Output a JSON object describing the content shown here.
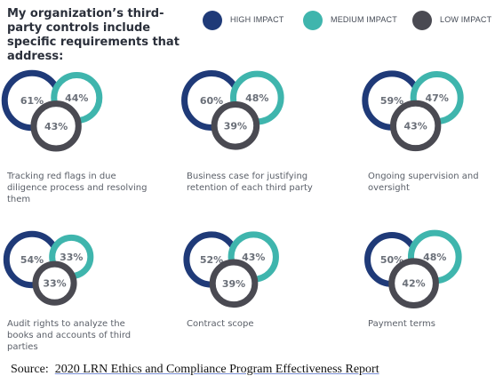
{
  "title": "My organization’s third-party controls include specific requirements that address:",
  "legend": [
    {
      "label": "HIGH IMPACT",
      "color": "#1f3a78"
    },
    {
      "label": "MEDIUM IMPACT",
      "color": "#3fb5ad"
    },
    {
      "label": "LOW IMPACT",
      "color": "#4a4a52"
    }
  ],
  "chart_data": {
    "type": "bubble-groups",
    "series": [
      {
        "name": "HIGH IMPACT",
        "color": "#1f3a78"
      },
      {
        "name": "MEDIUM IMPACT",
        "color": "#3fb5ad"
      },
      {
        "name": "LOW IMPACT",
        "color": "#4a4a52"
      }
    ],
    "groups": [
      {
        "label": "Tracking red flags in due diligence process and resolving them",
        "values": [
          61,
          44,
          43
        ]
      },
      {
        "label": "Business case for justifying retention of each third party",
        "values": [
          60,
          48,
          39
        ]
      },
      {
        "label": "Ongoing supervision and oversight",
        "values": [
          59,
          47,
          43
        ]
      },
      {
        "label": "Audit rights to analyze the books and accounts of third parties",
        "values": [
          54,
          33,
          33
        ]
      },
      {
        "label": "Contract scope",
        "values": [
          52,
          43,
          39
        ]
      },
      {
        "label": "Payment terms",
        "values": [
          50,
          48,
          42
        ]
      }
    ]
  },
  "source": {
    "prefix": "Source:",
    "text": "2020 LRN Ethics and Compliance Program Effectiveness Report"
  }
}
